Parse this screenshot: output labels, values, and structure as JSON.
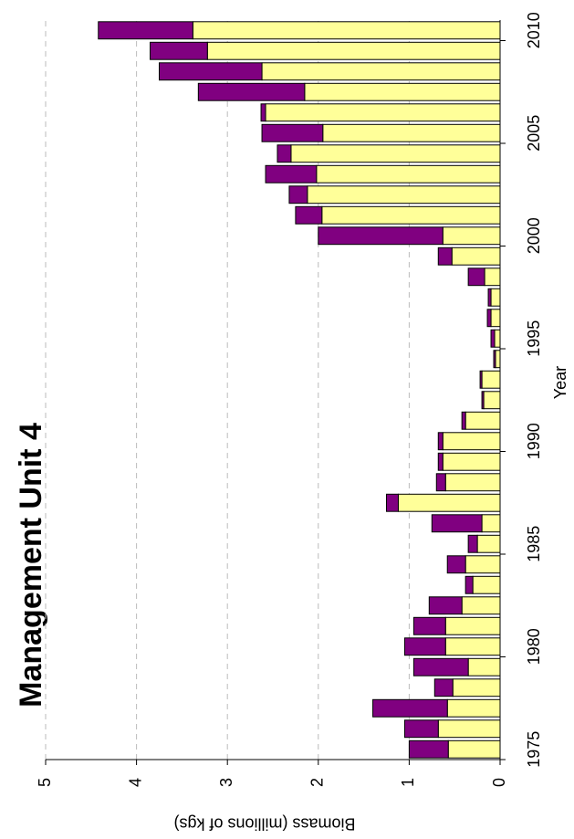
{
  "chart_data": {
    "type": "bar",
    "stacked": true,
    "orientation": "rotated-90",
    "title": "Management Unit 4",
    "x_label": "Year",
    "y_label": "Biomass (millions of kgs)",
    "categories": [
      "1975",
      null,
      null,
      null,
      null,
      "1980",
      null,
      null,
      null,
      null,
      "1985",
      null,
      null,
      null,
      null,
      "1990",
      null,
      null,
      null,
      null,
      "1995",
      null,
      null,
      null,
      null,
      "2000",
      null,
      null,
      null,
      null,
      "2005",
      null,
      null,
      null,
      null,
      "2010"
    ],
    "series": [
      {
        "color": "#ffff99",
        "values": [
          0.57,
          0.68,
          0.58,
          0.52,
          0.35,
          0.6,
          0.6,
          0.42,
          0.3,
          0.38,
          0.25,
          0.2,
          1.12,
          0.6,
          0.63,
          0.63,
          0.38,
          0.18,
          0.2,
          0.05,
          0.06,
          0.1,
          0.1,
          0.17,
          0.53,
          0.63,
          1.96,
          2.12,
          2.02,
          2.3,
          1.95,
          2.58,
          2.15,
          2.62,
          3.22,
          3.38
        ]
      },
      {
        "color": "#800080",
        "values": [
          0.43,
          0.37,
          0.82,
          0.2,
          0.6,
          0.45,
          0.35,
          0.36,
          0.08,
          0.2,
          0.1,
          0.55,
          0.13,
          0.1,
          0.05,
          0.05,
          0.04,
          0.02,
          0.02,
          0.02,
          0.04,
          0.04,
          0.03,
          0.18,
          0.15,
          1.37,
          0.29,
          0.2,
          0.56,
          0.15,
          0.67,
          0.05,
          1.17,
          1.13,
          0.63,
          1.04
        ]
      }
    ],
    "ylim": [
      0,
      5
    ],
    "yticks": [
      0,
      1,
      2,
      3,
      4,
      5
    ],
    "grid": true
  }
}
